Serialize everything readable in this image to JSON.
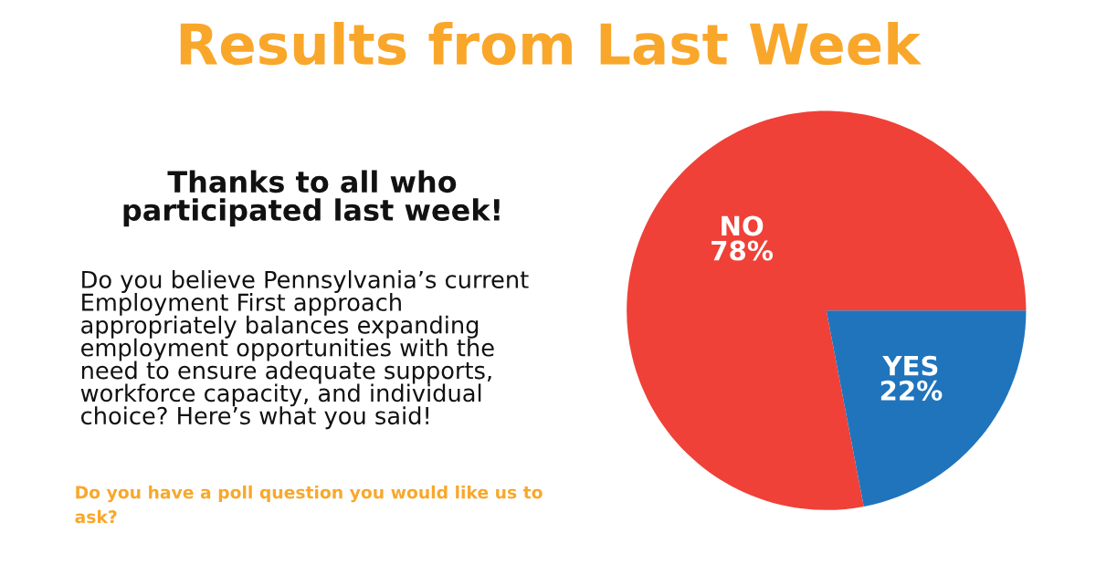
{
  "chart_data": {
    "type": "pie",
    "title": "Results from Last Week",
    "subtitle": "Thanks to all who\nparticipated last week!",
    "annotations": [
      "Do you believe Pennsylvania’s current\nEmployment First approach\nappropriately balances expanding\nemployment opportunities with the\nneed to ensure adequate supports,\nworkforce capacity, and individual\nchoice? Here’s what you said!",
      "Do you have a poll question you would like us to\nask?"
    ],
    "categories": [
      "NO",
      "YES"
    ],
    "values": [
      78,
      22
    ],
    "value_labels": [
      "78%",
      "22%"
    ],
    "colors": [
      "#ef4138",
      "#1f74bc"
    ],
    "legend": false
  }
}
